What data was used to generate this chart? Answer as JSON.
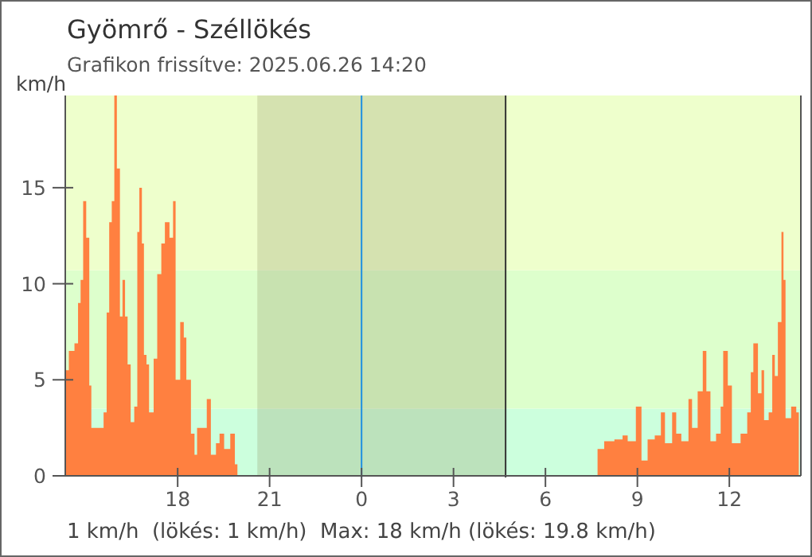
{
  "chart_data": {
    "type": "area",
    "title": "Gyömrő - Széllökés",
    "subtitle": "Grafikon frissítve: 2025.06.26 14:20",
    "ylabel": "km/h",
    "annotations": [
      "1 km/h  (lökés: 1 km/h)  Max: 18 km/h (lökés: 19.8 km/h)"
    ],
    "xlim": [
      "2025-06-25T14:20",
      "2025-06-26T14:20"
    ],
    "ylim": [
      0,
      19.8
    ],
    "xticks": [
      {
        "value": "2025-06-25T18:00",
        "label": "18"
      },
      {
        "value": "2025-06-25T21:00",
        "label": "21"
      },
      {
        "value": "2025-06-26T00:00",
        "label": "0"
      },
      {
        "value": "2025-06-26T03:00",
        "label": "3"
      },
      {
        "value": "2025-06-26T06:00",
        "label": "6"
      },
      {
        "value": "2025-06-26T09:00",
        "label": "9"
      },
      {
        "value": "2025-06-26T12:00",
        "label": "12"
      }
    ],
    "yticks": [
      0,
      5,
      10,
      15
    ],
    "grid": false,
    "bands": [
      {
        "axis": "y",
        "from": 0,
        "to": 3.5,
        "color": "#ccffdd"
      },
      {
        "axis": "y",
        "from": 3.5,
        "to": 10.7,
        "color": "#ddffcc"
      },
      {
        "axis": "y",
        "from": 10.7,
        "to": 19.8,
        "color": "#eeffcc"
      },
      {
        "axis": "x",
        "from": "2025-06-25T20:36",
        "to": "2025-06-26T04:42",
        "color": "#8a8a5a"
      }
    ],
    "ref_lines": [
      {
        "axis": "x",
        "value": "2025-06-26T00:00",
        "color": "#1e90e0"
      },
      {
        "axis": "x",
        "value": "2025-06-26T04:42",
        "color": "#333333"
      }
    ],
    "series": [
      {
        "color": "#ff8040",
        "x": [
          "2025-06-25T14:20",
          "2025-06-25T14:27",
          "2025-06-25T14:38",
          "2025-06-25T14:45",
          "2025-06-25T14:50",
          "2025-06-25T14:55",
          "2025-06-25T15:01",
          "2025-06-25T15:07",
          "2025-06-25T15:11",
          "2025-06-25T15:25",
          "2025-06-25T15:35",
          "2025-06-25T15:41",
          "2025-06-25T15:46",
          "2025-06-25T15:51",
          "2025-06-25T15:56",
          "2025-06-25T16:01",
          "2025-06-25T16:07",
          "2025-06-25T16:12",
          "2025-06-25T16:17",
          "2025-06-25T16:22",
          "2025-06-25T16:28",
          "2025-06-25T16:35",
          "2025-06-25T16:41",
          "2025-06-25T16:45",
          "2025-06-25T16:50",
          "2025-06-25T16:54",
          "2025-06-25T16:59",
          "2025-06-25T17:04",
          "2025-06-25T17:13",
          "2025-06-25T17:20",
          "2025-06-25T17:28",
          "2025-06-25T17:35",
          "2025-06-25T17:44",
          "2025-06-25T17:51",
          "2025-06-25T17:56",
          "2025-06-25T18:05",
          "2025-06-25T18:12",
          "2025-06-25T18:17",
          "2025-06-25T18:26",
          "2025-06-25T18:33",
          "2025-06-25T18:38",
          "2025-06-25T18:49",
          "2025-06-25T18:57",
          "2025-06-25T19:05",
          "2025-06-25T19:15",
          "2025-06-25T19:22",
          "2025-06-25T19:31",
          "2025-06-25T19:43",
          "2025-06-25T19:52",
          "2025-06-25T19:57",
          "2025-06-26T07:36",
          "2025-06-26T07:42",
          "2025-06-26T07:55",
          "2025-06-26T08:15",
          "2025-06-26T08:31",
          "2025-06-26T08:41",
          "2025-06-26T08:57",
          "2025-06-26T09:08",
          "2025-06-26T09:20",
          "2025-06-26T09:34",
          "2025-06-26T09:46",
          "2025-06-26T09:54",
          "2025-06-26T10:08",
          "2025-06-26T10:16",
          "2025-06-26T10:26",
          "2025-06-26T10:40",
          "2025-06-26T10:47",
          "2025-06-26T10:58",
          "2025-06-26T11:08",
          "2025-06-26T11:15",
          "2025-06-26T11:23",
          "2025-06-26T11:34",
          "2025-06-26T11:43",
          "2025-06-26T11:48",
          "2025-06-26T11:57",
          "2025-06-26T12:05",
          "2025-06-26T12:22",
          "2025-06-26T12:35",
          "2025-06-26T12:42",
          "2025-06-26T12:47",
          "2025-06-26T12:56",
          "2025-06-26T13:03",
          "2025-06-26T13:08",
          "2025-06-26T13:17",
          "2025-06-26T13:24",
          "2025-06-26T13:29",
          "2025-06-26T13:35",
          "2025-06-26T13:42",
          "2025-06-26T13:46",
          "2025-06-26T13:50",
          "2025-06-26T14:01",
          "2025-06-26T14:11",
          "2025-06-26T14:16"
        ],
        "values": [
          5.5,
          6.5,
          6.9,
          9.0,
          10.2,
          14.3,
          12.4,
          4.7,
          2.5,
          2.5,
          3.3,
          8.5,
          13.2,
          14.3,
          19.8,
          16,
          8.3,
          10.2,
          8.3,
          5.8,
          2.8,
          3.6,
          12.7,
          15.0,
          12.1,
          6.3,
          5.8,
          3.3,
          6.1,
          10.5,
          12.1,
          13.2,
          12.4,
          14.3,
          5.0,
          8.0,
          7.2,
          5.0,
          2.2,
          1.1,
          2.5,
          2.5,
          4.0,
          1.1,
          1.7,
          2.2,
          1.4,
          2.2,
          0.6,
          0,
          0,
          1.4,
          1.8,
          1.9,
          2.1,
          1.8,
          3.6,
          0.8,
          1.9,
          2.1,
          3.3,
          1.7,
          3.3,
          2.2,
          1.8,
          4.0,
          2.5,
          4.4,
          6.5,
          4.4,
          1.8,
          2.2,
          3.6,
          6.5,
          4.7,
          1.7,
          2.2,
          3.3,
          5.4,
          6.9,
          4.3,
          5.5,
          2.9,
          3.3,
          6.3,
          5.2,
          8.0,
          12.7,
          10.2,
          3.0,
          3.6,
          3.3,
          1.2
        ]
      }
    ]
  }
}
